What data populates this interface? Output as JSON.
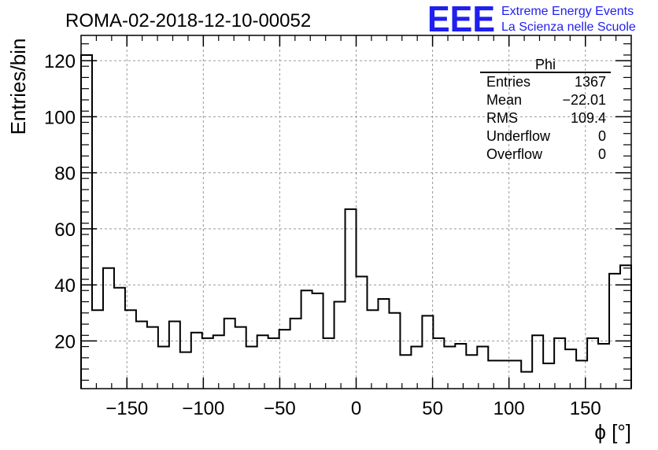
{
  "chart_data": {
    "type": "bar",
    "title": "ROMA-02-2018-12-10-00052",
    "xlabel": "ϕ [°]",
    "ylabel": "Entries/bin",
    "xlim": [
      -180,
      180
    ],
    "ylim": [
      3,
      129
    ],
    "bin_width": 7.2,
    "xticks": [
      -150,
      -100,
      -50,
      0,
      50,
      100,
      150
    ],
    "xtick_labels": [
      "−150",
      "−100",
      "−50",
      "0",
      "50",
      "100",
      "150"
    ],
    "yticks": [
      20,
      40,
      60,
      80,
      100,
      120
    ],
    "ytick_labels": [
      "20",
      "40",
      "60",
      "80",
      "100",
      "120"
    ],
    "grid": true,
    "values": [
      122,
      31,
      46,
      39,
      31,
      27,
      25,
      18,
      27,
      16,
      23,
      21,
      22,
      28,
      25,
      18,
      22,
      21,
      24,
      28,
      38,
      37,
      21,
      34,
      67,
      43,
      31,
      35,
      30,
      15,
      18,
      29,
      21,
      18,
      19,
      15,
      18,
      13,
      13,
      13,
      9,
      22,
      12,
      21,
      17,
      13,
      21,
      19,
      44,
      47
    ],
    "stats_box": {
      "title": "Phi",
      "rows": [
        {
          "label": "Entries",
          "value": "1367"
        },
        {
          "label": "Mean",
          "value": "−22.01"
        },
        {
          "label": "RMS",
          "value": "109.4"
        },
        {
          "label": "Underflow",
          "value": "0"
        },
        {
          "label": "Overflow",
          "value": "0"
        }
      ]
    }
  },
  "logo": {
    "mark": "EEE",
    "line1": "Extreme Energy Events",
    "line2": "La Scienza nelle Scuole",
    "color": "#1f1ff0"
  }
}
